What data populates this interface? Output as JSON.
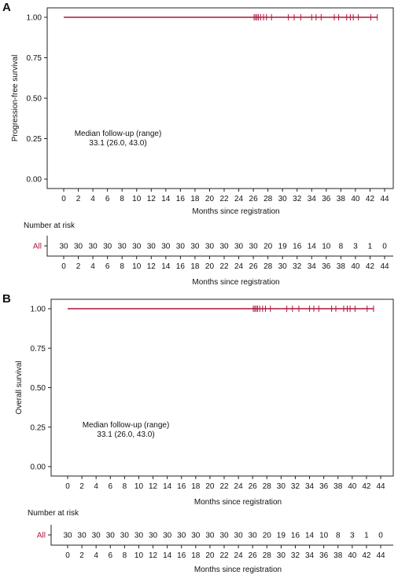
{
  "accent_color": "#b0153a",
  "axis_color": "#222222",
  "chart_data": [
    {
      "panel": "A",
      "type": "line",
      "title": "",
      "ylabel": "Progression-free survival",
      "xlabel": "Months since registration",
      "xlim": [
        0,
        44
      ],
      "ylim": [
        0,
        1
      ],
      "x_ticks": [
        0,
        2,
        4,
        6,
        8,
        10,
        12,
        14,
        16,
        18,
        20,
        22,
        24,
        26,
        28,
        30,
        32,
        34,
        36,
        38,
        40,
        42,
        44
      ],
      "y_ticks": [
        "0.00",
        "0.25",
        "0.50",
        "0.75",
        "1.00"
      ],
      "grid": false,
      "curve": {
        "x": [
          0,
          43
        ],
        "y": [
          1.0,
          1.0
        ]
      },
      "censor_times": [
        26.1,
        26.3,
        26.5,
        26.7,
        27.0,
        27.4,
        27.8,
        28.5,
        30.8,
        31.6,
        32.5,
        34.0,
        34.6,
        35.3,
        37.1,
        37.7,
        38.8,
        39.3,
        39.7,
        40.4,
        42.1,
        43.0
      ],
      "annotation": {
        "line1": "Median follow-up (range)",
        "line2": "33.1 (26.0, 43.0)"
      },
      "risk_table": {
        "title": "Number at risk",
        "group_label": "All",
        "times": [
          0,
          2,
          4,
          6,
          8,
          10,
          12,
          14,
          16,
          18,
          20,
          22,
          24,
          26,
          28,
          30,
          32,
          34,
          36,
          38,
          40,
          42,
          44
        ],
        "counts": [
          30,
          30,
          30,
          30,
          30,
          30,
          30,
          30,
          30,
          30,
          30,
          30,
          30,
          30,
          20,
          19,
          16,
          14,
          10,
          8,
          3,
          1,
          0
        ],
        "xlabel": "Months since registration"
      }
    },
    {
      "panel": "B",
      "type": "line",
      "title": "",
      "ylabel": "Overall survival",
      "xlabel": "Months since registration",
      "xlim": [
        0,
        44
      ],
      "ylim": [
        0,
        1
      ],
      "x_ticks": [
        0,
        2,
        4,
        6,
        8,
        10,
        12,
        14,
        16,
        18,
        20,
        22,
        24,
        26,
        28,
        30,
        32,
        34,
        36,
        38,
        40,
        42,
        44
      ],
      "y_ticks": [
        "0.00",
        "0.25",
        "0.50",
        "0.75",
        "1.00"
      ],
      "grid": false,
      "curve": {
        "x": [
          0,
          43
        ],
        "y": [
          1.0,
          1.0
        ]
      },
      "censor_times": [
        26.1,
        26.3,
        26.5,
        26.7,
        27.0,
        27.4,
        27.8,
        28.5,
        30.8,
        31.6,
        32.5,
        34.0,
        34.6,
        35.3,
        37.1,
        37.7,
        38.8,
        39.3,
        39.7,
        40.4,
        42.1,
        43.0
      ],
      "annotation": {
        "line1": "Median follow-up (range)",
        "line2": "33.1 (26.0, 43.0)"
      },
      "risk_table": {
        "title": "Number at risk",
        "group_label": "All",
        "times": [
          0,
          2,
          4,
          6,
          8,
          10,
          12,
          14,
          16,
          18,
          20,
          22,
          24,
          26,
          28,
          30,
          32,
          34,
          36,
          38,
          40,
          42,
          44
        ],
        "counts": [
          30,
          30,
          30,
          30,
          30,
          30,
          30,
          30,
          30,
          30,
          30,
          30,
          30,
          30,
          20,
          19,
          16,
          14,
          10,
          8,
          3,
          1,
          0
        ],
        "xlabel": "Months since registration"
      }
    }
  ]
}
